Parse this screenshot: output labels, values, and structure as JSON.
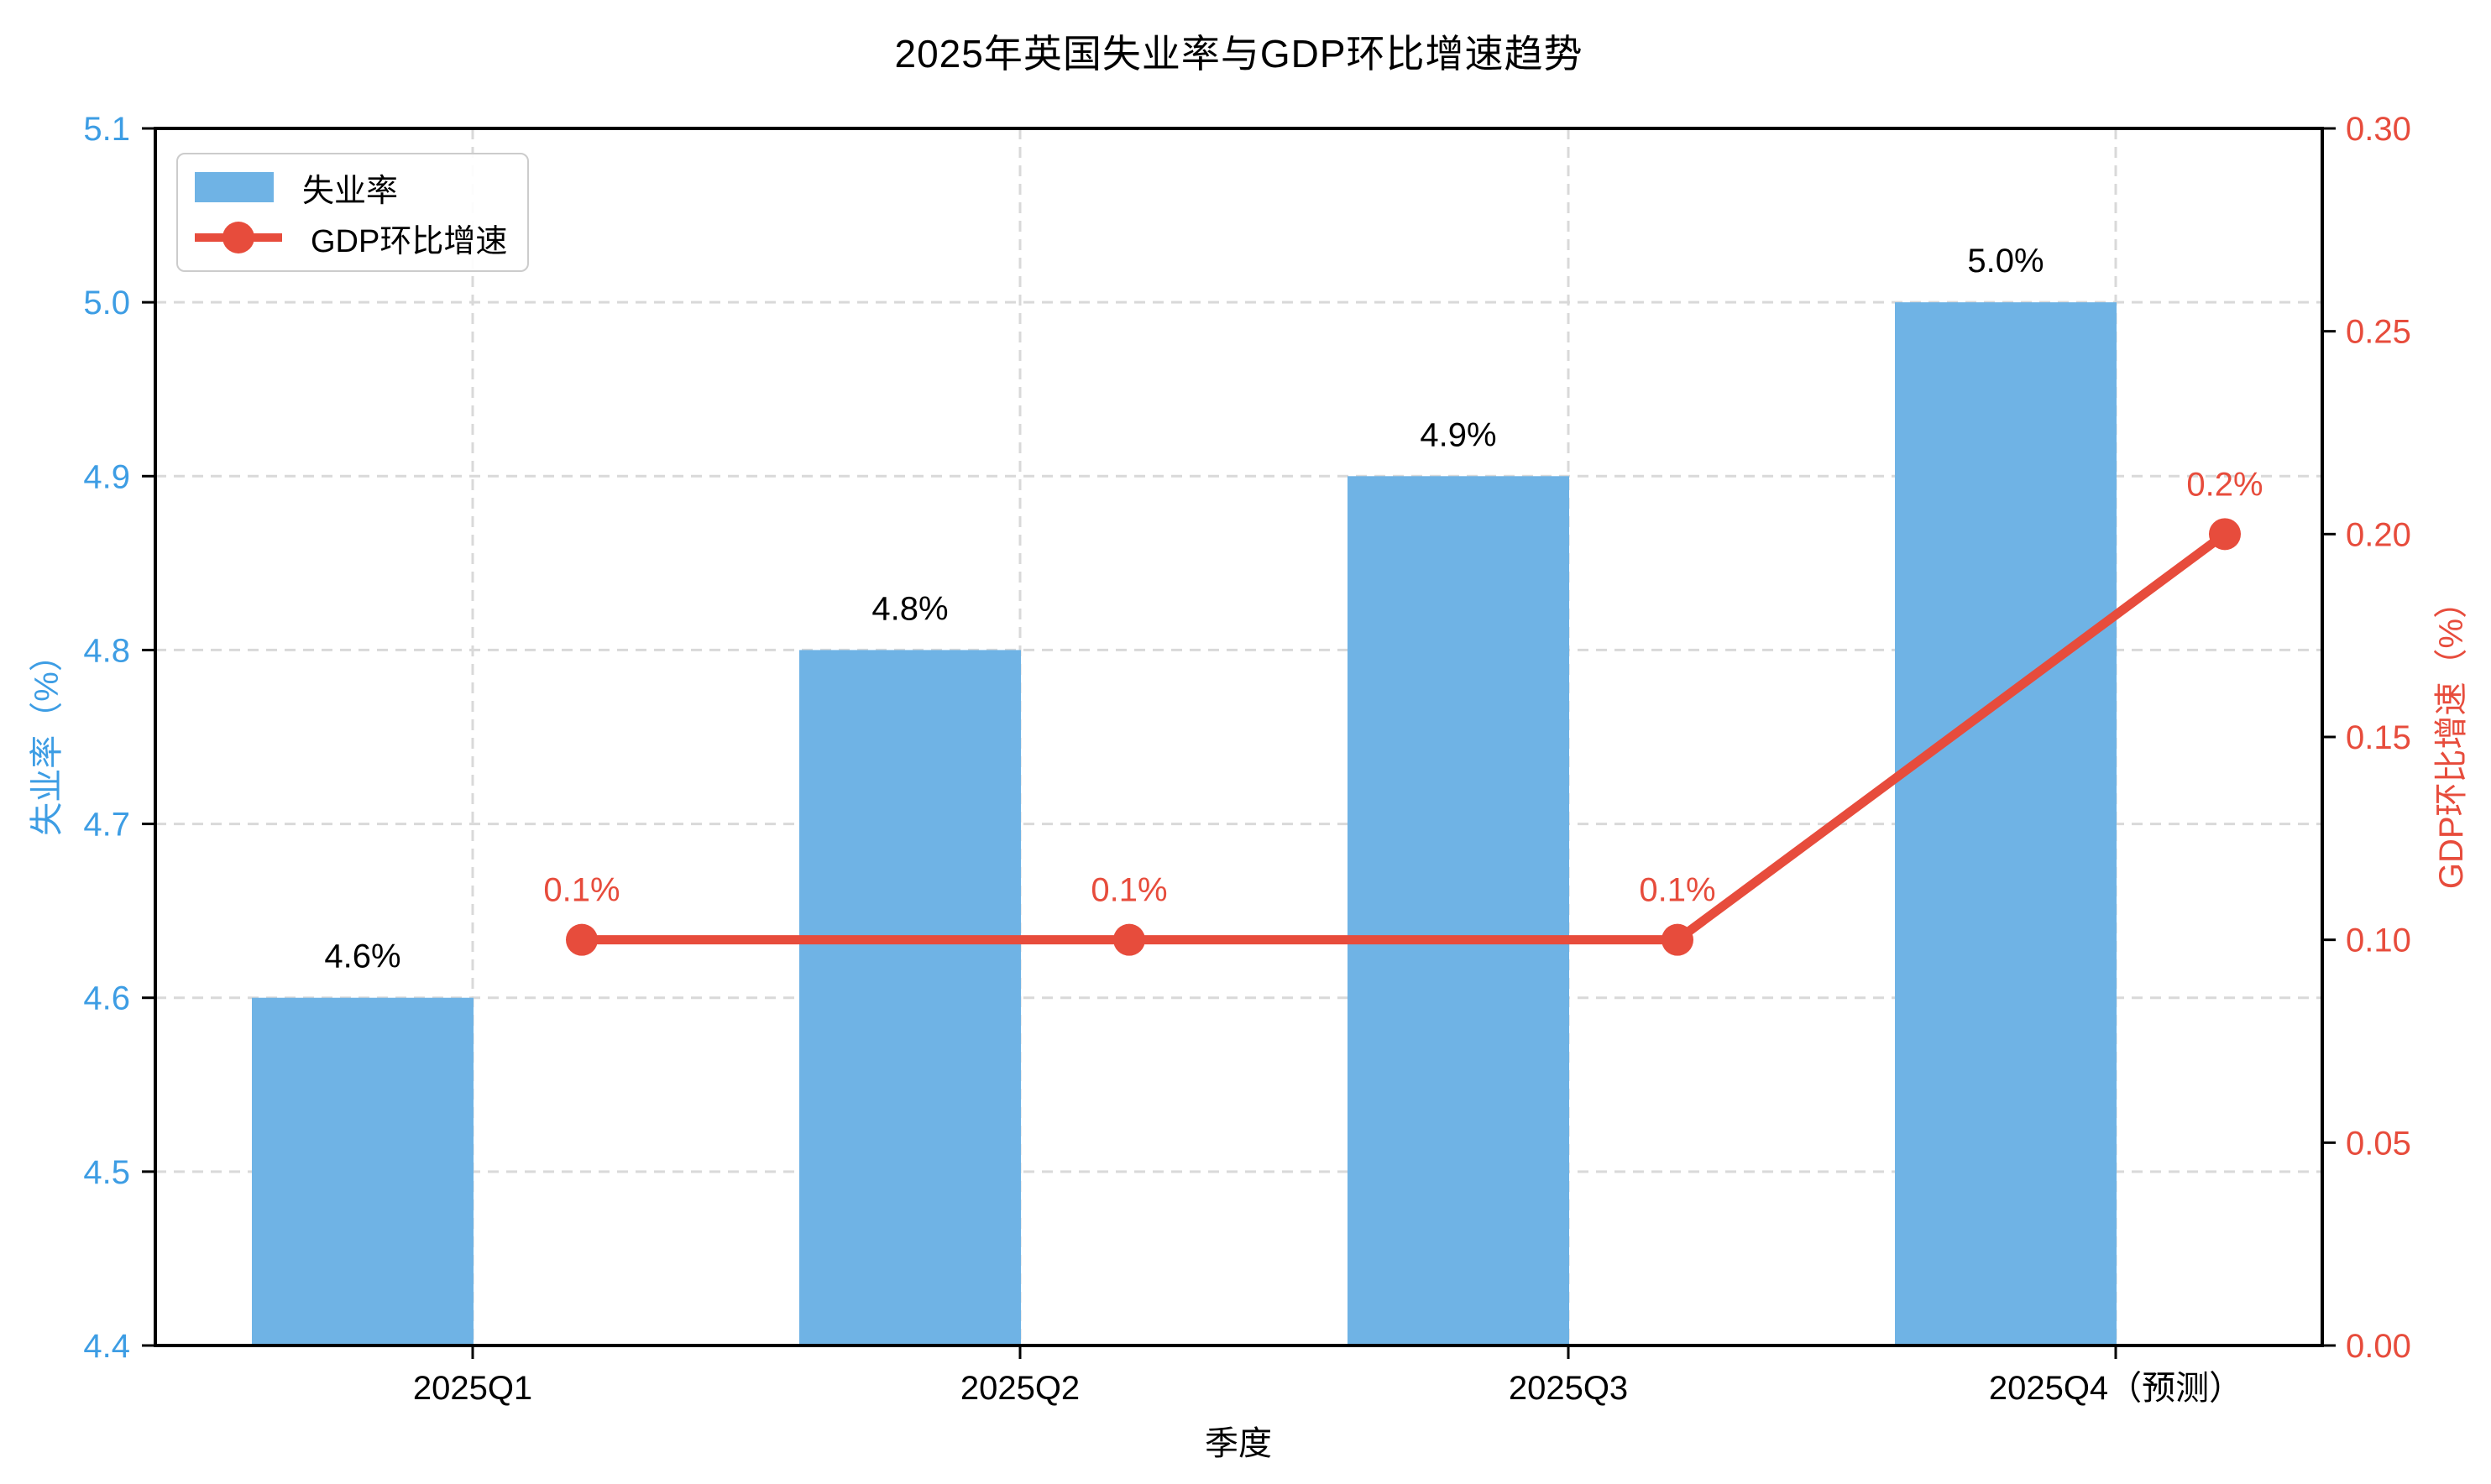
{
  "chart_data": {
    "type": "bar+line dual-axis",
    "title": "2025年英国失业率与GDP环比增速趋势",
    "xlabel": "季度",
    "categories": [
      "2025Q1",
      "2025Q2",
      "2025Q3",
      "2025Q4（预测）"
    ],
    "series": [
      {
        "name": "失业率",
        "type": "bar",
        "axis": "left",
        "color": "#6FB3E5",
        "values": [
          4.6,
          4.8,
          4.9,
          5.0
        ],
        "labels": [
          "4.6%",
          "4.8%",
          "4.9%",
          "5.0%"
        ],
        "label_color": "#000000"
      },
      {
        "name": "GDP环比增速",
        "type": "line",
        "axis": "right",
        "color": "#E74C3C",
        "values": [
          0.1,
          0.1,
          0.1,
          0.2
        ],
        "labels": [
          "0.1%",
          "0.1%",
          "0.1%",
          "0.2%"
        ],
        "label_color": "#E74C3C"
      }
    ],
    "left_axis": {
      "label": "失业率（%）",
      "min": 4.4,
      "max": 5.1,
      "ticks": [
        "4.4",
        "4.5",
        "4.6",
        "4.7",
        "4.8",
        "4.9",
        "5.0",
        "5.1"
      ],
      "color": "#3D9DE4"
    },
    "right_axis": {
      "label": "GDP环比增速（%）",
      "min": 0.0,
      "max": 0.3,
      "ticks": [
        "0.00",
        "0.05",
        "0.10",
        "0.15",
        "0.20",
        "0.25",
        "0.30"
      ],
      "color": "#E74C3C"
    },
    "grid": true,
    "grid_color": "#D9D9D9",
    "spine_color": "#000000",
    "legend_position": "top-left"
  }
}
